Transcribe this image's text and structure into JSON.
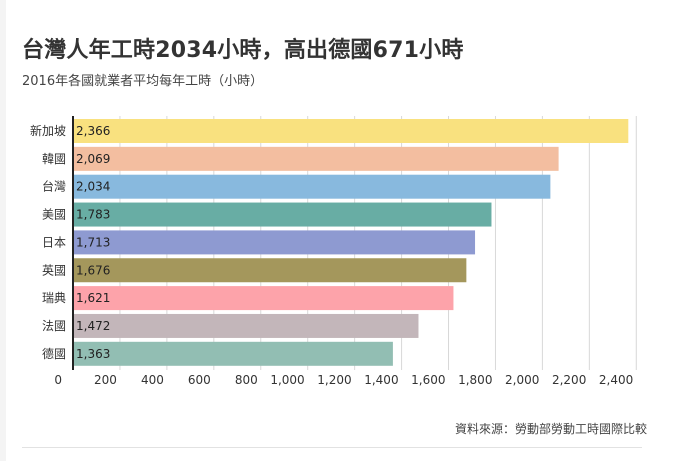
{
  "chart_data": {
    "type": "bar",
    "orientation": "horizontal",
    "title": "台灣人年工時2034小時，高出德國671小時",
    "subtitle": "2016年各國就業者平均每年工時（小時）",
    "categories": [
      "新加坡",
      "韓國",
      "台灣",
      "美國",
      "日本",
      "英國",
      "瑞典",
      "法國",
      "德國"
    ],
    "values": [
      2366,
      2069,
      2034,
      1783,
      1713,
      1676,
      1621,
      1472,
      1363
    ],
    "value_labels": [
      "2,366",
      "2,069",
      "2,034",
      "1,783",
      "1,713",
      "1,676",
      "1,621",
      "1,472",
      "1,363"
    ],
    "colors": [
      "#f9e17f",
      "#f3bea0",
      "#88b9de",
      "#68ada4",
      "#8e9ad1",
      "#a4975c",
      "#fda3aa",
      "#c3b6ba",
      "#92beb3"
    ],
    "xlim": [
      0,
      2400
    ],
    "xticks": [
      0,
      200,
      400,
      600,
      800,
      1000,
      1200,
      1400,
      1600,
      1800,
      2000,
      2200,
      2400
    ],
    "xtick_labels": [
      "0",
      "200",
      "400",
      "600",
      "800",
      "1,000",
      "1,200",
      "1,400",
      "1,600",
      "1,800",
      "2,000",
      "2,200",
      "2,400"
    ],
    "xlabel": "",
    "ylabel": "",
    "grid": true,
    "source": "資料來源：勞動部勞動工時國際比較"
  }
}
